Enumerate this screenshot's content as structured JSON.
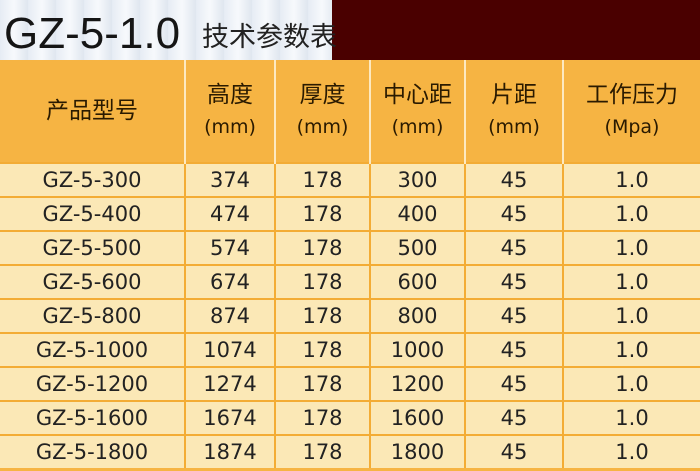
{
  "title": {
    "code": "GZ-5-1.0",
    "subtitle": "技术参数表"
  },
  "colors": {
    "header": "#f6b443",
    "row": "#fbe8b6",
    "title_dark": "#4a0000"
  },
  "table": {
    "headers": [
      {
        "label": "产品型号",
        "unit": ""
      },
      {
        "label": "高度",
        "unit": "(mm)"
      },
      {
        "label": "厚度",
        "unit": "(mm)"
      },
      {
        "label": "中心距",
        "unit": "(mm)"
      },
      {
        "label": "片距",
        "unit": "(mm)"
      },
      {
        "label": "工作压力",
        "unit": "(Mpa)"
      }
    ],
    "rows": [
      [
        "GZ-5-300",
        "374",
        "178",
        "300",
        "45",
        "1.0"
      ],
      [
        "GZ-5-400",
        "474",
        "178",
        "400",
        "45",
        "1.0"
      ],
      [
        "GZ-5-500",
        "574",
        "178",
        "500",
        "45",
        "1.0"
      ],
      [
        "GZ-5-600",
        "674",
        "178",
        "600",
        "45",
        "1.0"
      ],
      [
        "GZ-5-800",
        "874",
        "178",
        "800",
        "45",
        "1.0"
      ],
      [
        "GZ-5-1000",
        "1074",
        "178",
        "1000",
        "45",
        "1.0"
      ],
      [
        "GZ-5-1200",
        "1274",
        "178",
        "1200",
        "45",
        "1.0"
      ],
      [
        "GZ-5-1600",
        "1674",
        "178",
        "1600",
        "45",
        "1.0"
      ],
      [
        "GZ-5-1800",
        "1874",
        "178",
        "1800",
        "45",
        "1.0"
      ]
    ]
  }
}
